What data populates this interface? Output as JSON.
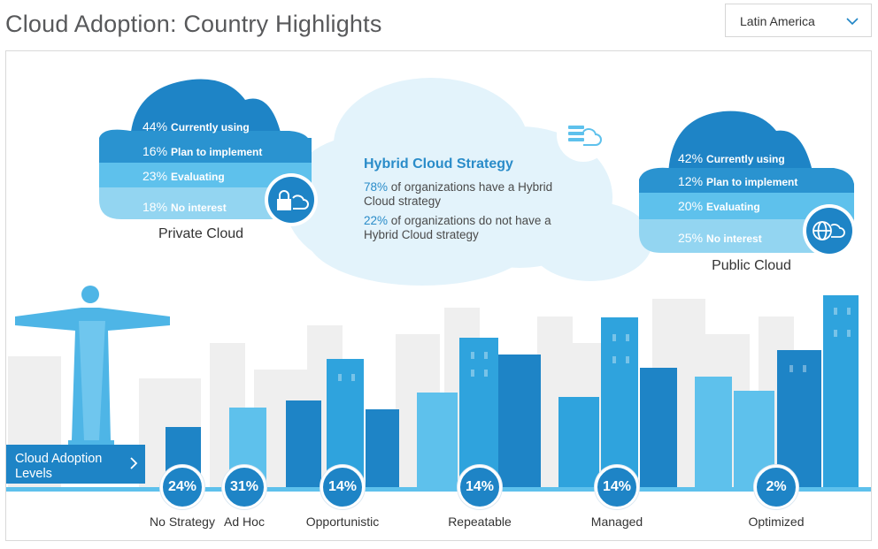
{
  "page": {
    "title": "Cloud Adoption: Country Highlights"
  },
  "region_select": {
    "value": "Latin America",
    "icon": "chevron-down-icon"
  },
  "private_cloud": {
    "label": "Private Cloud",
    "icon": "lock-cloud-icon",
    "stats": [
      {
        "pct": "44%",
        "text": "Currently using"
      },
      {
        "pct": "16%",
        "text": "Plan to implement"
      },
      {
        "pct": "23%",
        "text": "Evaluating"
      },
      {
        "pct": "18%",
        "text": "No interest"
      }
    ]
  },
  "public_cloud": {
    "label": "Public Cloud",
    "icon": "globe-cloud-icon",
    "stats": [
      {
        "pct": "42%",
        "text": "Currently using"
      },
      {
        "pct": "12%",
        "text": "Plan to implement"
      },
      {
        "pct": "20%",
        "text": "Evaluating"
      },
      {
        "pct": "25%",
        "text": "No interest"
      }
    ]
  },
  "hybrid_cloud": {
    "title": "Hybrid Cloud Strategy",
    "icon": "server-cloud-icon",
    "line1_pct": "78%",
    "line1_text": "of organizations have a Hybrid Cloud strategy",
    "line2_pct": "22%",
    "line2_text": "of organizations do not have a Hybrid Cloud strategy"
  },
  "levels_button": {
    "label": "Cloud Adoption Levels",
    "icon": "chevron-right-icon"
  },
  "chart_data": {
    "type": "bar",
    "categories": [
      "No Strategy",
      "Ad Hoc",
      "Opportunistic",
      "Repeatable",
      "Managed",
      "Optimized"
    ],
    "values": [
      24,
      31,
      14,
      14,
      14,
      2
    ],
    "value_labels": [
      "24%",
      "31%",
      "14%",
      "14%",
      "14%",
      "2%"
    ]
  },
  "colors": {
    "dark_blue": "#1e84c6",
    "mid_blue": "#2fa3dd",
    "light_blue": "#5ec1ec",
    "pale_blue": "#e3f3fb",
    "skyline_grey": "#efefef",
    "statue": "#4eb5e6"
  }
}
